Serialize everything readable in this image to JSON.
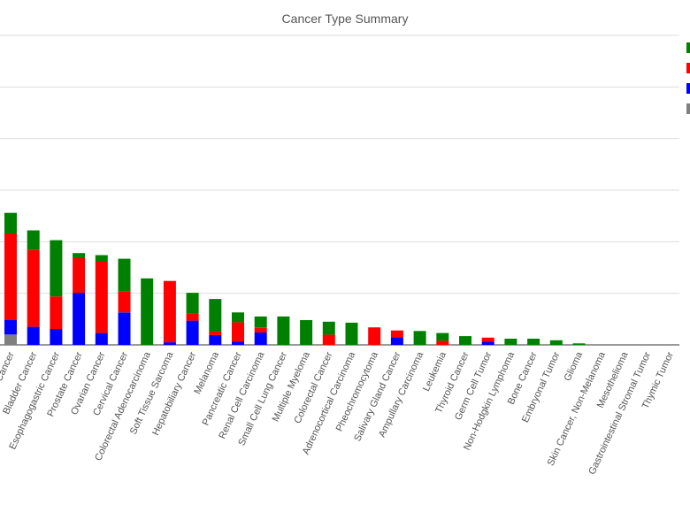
{
  "chart_data": {
    "type": "bar",
    "stacked": true,
    "title": "Cancer Type Summary",
    "xlabel": "",
    "ylabel": "",
    "ylim": [
      0,
      6
    ],
    "grid": true,
    "legend_position": "right",
    "categories": [
      "Breast Cancer",
      "Bladder Cancer",
      "Esophagogastric Cancer",
      "Prostate Cancer",
      "Ovarian Cancer",
      "Cervical Cancer",
      "Colorectal Adenocarcinoma",
      "Soft Tissue Sarcoma",
      "Hepatobiliary Cancer",
      "Melanoma",
      "Pancreatic Cancer",
      "Renal Cell Carcinoma",
      "Small Cell Lung Cancer",
      "Multiple Myeloma",
      "Colorectal Cancer",
      "Adrenocortical Carcinoma",
      "Pheochromocytoma",
      "Salivary Gland Cancer",
      "Ampullary Carcinoma",
      "Leukemia",
      "Thyroid Cancer",
      "Germ Cell Tumor",
      "Non-Hodgkin Lymphoma",
      "Bone Cancer",
      "Embryonal Tumor",
      "Glioma",
      "Skin Cancer, Non-Melanoma",
      "Mesothelioma",
      "Gastrointestinal Stromal Tumor",
      "Thymic Tumor"
    ],
    "series": [
      {
        "color": "#808080",
        "values": [
          0.2,
          0,
          0,
          0,
          0,
          0,
          0,
          0,
          0,
          0,
          0,
          0,
          0,
          0,
          0,
          0,
          0,
          0,
          0,
          0,
          0,
          0,
          0,
          0,
          0,
          0,
          0,
          0,
          0,
          0
        ]
      },
      {
        "color": "#0000ff",
        "values": [
          0.28,
          0.35,
          0.31,
          1.01,
          0.23,
          0.63,
          0,
          0.05,
          0.47,
          0.19,
          0.06,
          0.24,
          0,
          0,
          0,
          0,
          0,
          0.15,
          0,
          0,
          0,
          0.06,
          0,
          0,
          0,
          0,
          0,
          0,
          0,
          0
        ]
      },
      {
        "color": "#ff0000",
        "values": [
          1.68,
          1.49,
          0.63,
          0.68,
          1.39,
          0.41,
          0,
          1.19,
          0.14,
          0.07,
          0.38,
          0.09,
          0,
          0,
          0.2,
          0,
          0.34,
          0.13,
          0,
          0.08,
          0,
          0.08,
          0,
          0,
          0,
          0,
          0,
          0,
          0,
          0
        ]
      },
      {
        "color": "#008000",
        "values": [
          0.4,
          0.38,
          1.09,
          0.09,
          0.12,
          0.63,
          1.29,
          0,
          0.4,
          0.63,
          0.19,
          0.22,
          0.55,
          0.48,
          0.25,
          0.43,
          0,
          0,
          0.27,
          0.15,
          0.17,
          0,
          0.12,
          0.12,
          0.09,
          0.03,
          0,
          0,
          0,
          0
        ]
      }
    ]
  }
}
